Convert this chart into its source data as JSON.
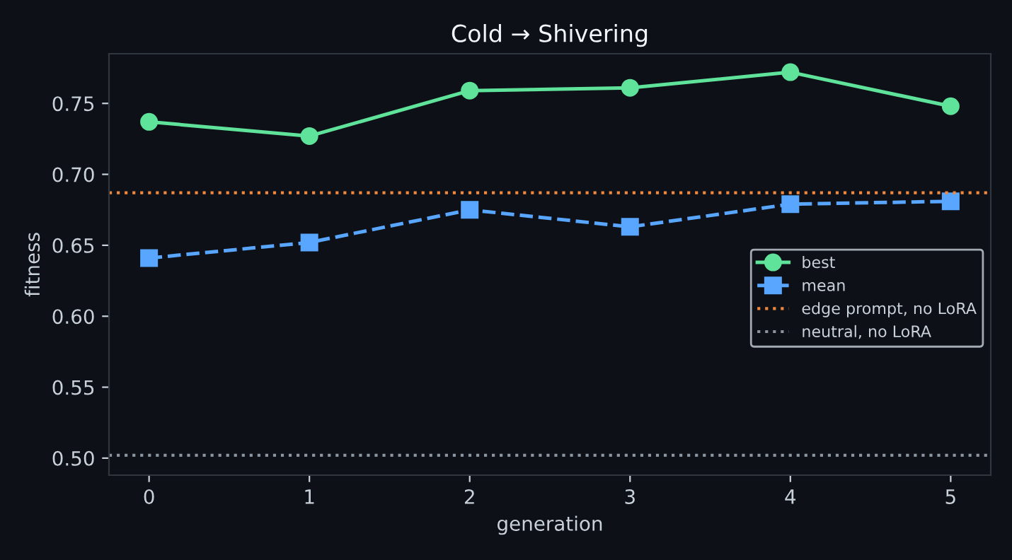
{
  "chart_data": {
    "type": "line",
    "title": "Cold → Shivering",
    "xlabel": "generation",
    "ylabel": "fitness",
    "x": [
      0,
      1,
      2,
      3,
      4,
      5
    ],
    "series": [
      {
        "name": "best",
        "color": "#5fe39a",
        "values": [
          0.737,
          0.727,
          0.759,
          0.761,
          0.772,
          0.748
        ],
        "marker": "circle",
        "line_style": "solid"
      },
      {
        "name": "mean",
        "color": "#58a6ff",
        "values": [
          0.641,
          0.652,
          0.675,
          0.663,
          0.679,
          0.681
        ],
        "marker": "square",
        "line_style": "dashed"
      }
    ],
    "ref_lines": [
      {
        "axis": "y",
        "value": 0.687,
        "label": "edge prompt, no LoRA",
        "color": "#f0883e",
        "line_style": "dotted"
      },
      {
        "axis": "y",
        "value": 0.502,
        "label": "neutral, no LoRA",
        "color": "#8b949e",
        "line_style": "dotted"
      }
    ],
    "xlim": [
      -0.25,
      5.25
    ],
    "xticks": [
      0,
      1,
      2,
      3,
      4,
      5
    ],
    "ylim": [
      0.488,
      0.785
    ],
    "yticks": [
      {
        "value": 0.5,
        "label": "0.50"
      },
      {
        "value": 0.55,
        "label": "0.55"
      },
      {
        "value": 0.6,
        "label": "0.60"
      },
      {
        "value": 0.65,
        "label": "0.65"
      },
      {
        "value": 0.7,
        "label": "0.70"
      },
      {
        "value": 0.75,
        "label": "0.75"
      }
    ],
    "grid": false,
    "legend": "right"
  }
}
